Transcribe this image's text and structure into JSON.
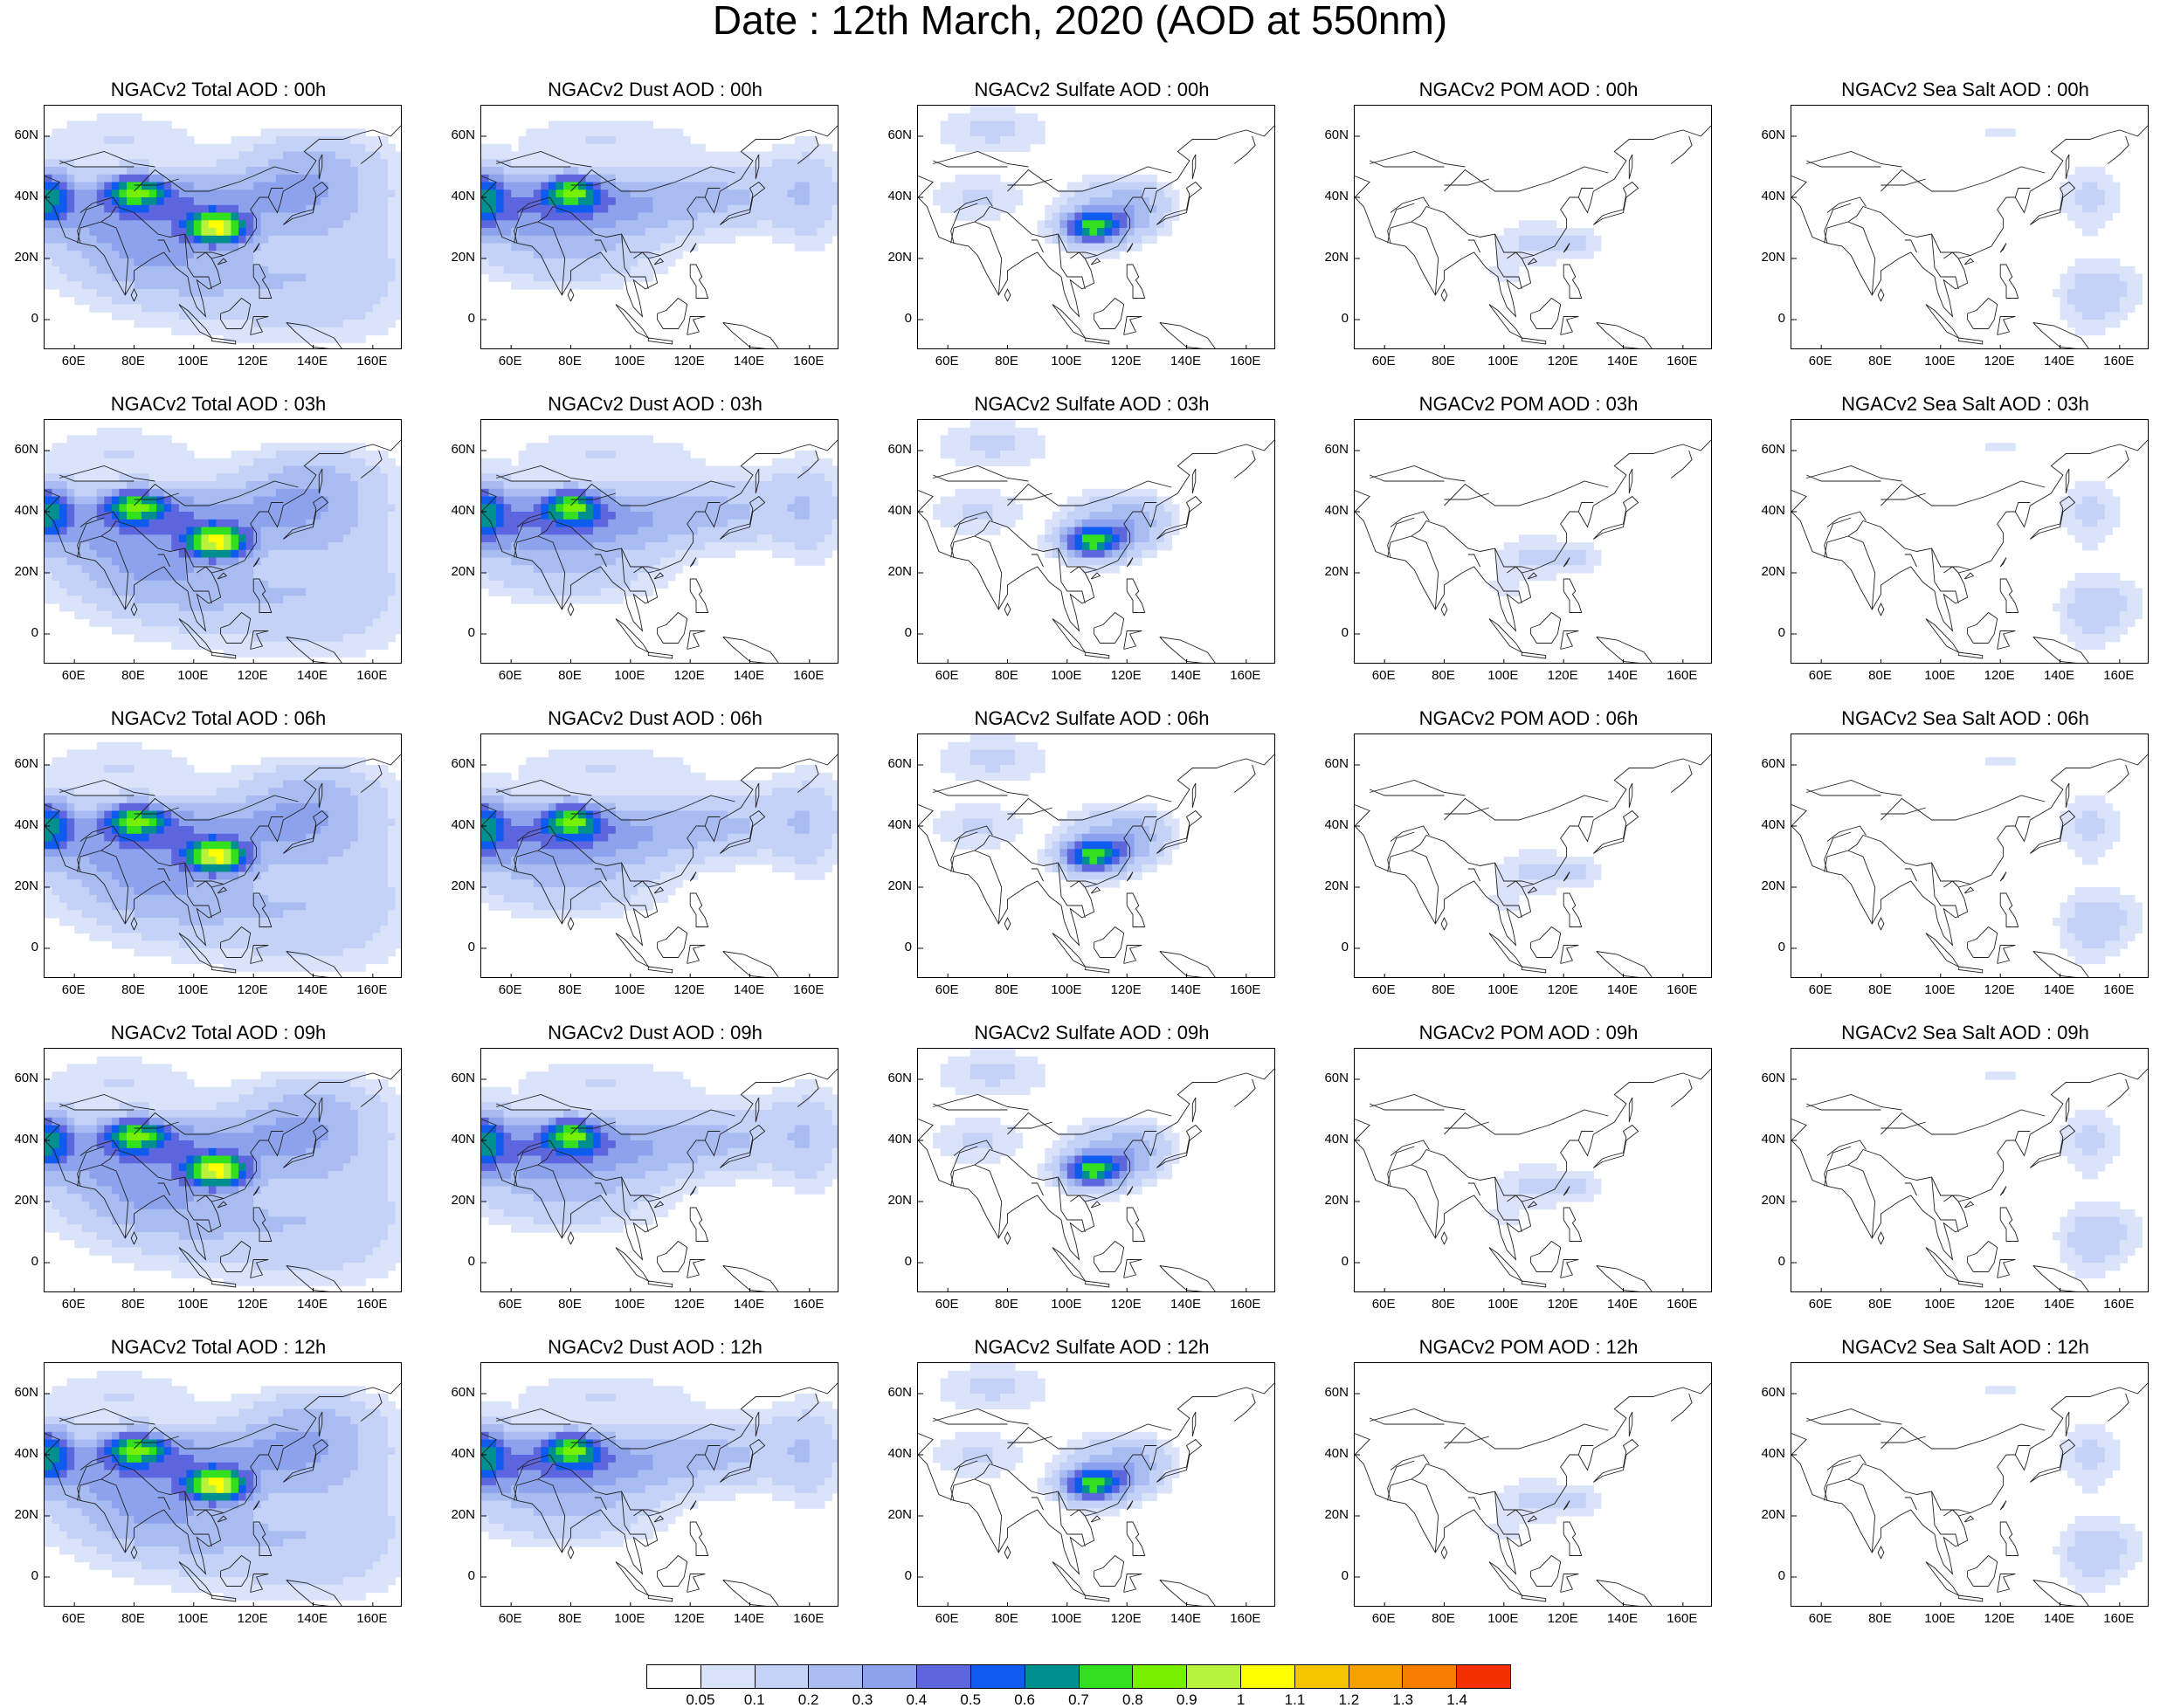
{
  "title": "Date : 12th March, 2020 (AOD at 550nm)",
  "lat_ticks": [
    "60N",
    "40N",
    "20N",
    "0"
  ],
  "lon_ticks": [
    "60E",
    "80E",
    "100E",
    "120E",
    "140E",
    "160E"
  ],
  "colorbar": {
    "colors": [
      "#ffffff",
      "#dbe3fb",
      "#c4d2f8",
      "#a9bcf2",
      "#8da2ec",
      "#5d66de",
      "#0f5bf0",
      "#008f8f",
      "#32e020",
      "#77f000",
      "#b7f23c",
      "#ffff00",
      "#f7c400",
      "#f7a200",
      "#f57e00",
      "#f53000"
    ],
    "labels": [
      "0.05",
      "0.1",
      "0.2",
      "0.3",
      "0.4",
      "0.5",
      "0.6",
      "0.7",
      "0.8",
      "0.9",
      "1",
      "1.1",
      "1.2",
      "1.3",
      "1.4"
    ]
  },
  "panels": [
    {
      "title": "NGACv2 Total AOD : 00h",
      "species": "total"
    },
    {
      "title": "NGACv2 Dust AOD : 00h",
      "species": "dust"
    },
    {
      "title": "NGACv2 Sulfate AOD : 00h",
      "species": "sulfate"
    },
    {
      "title": "NGACv2 POM AOD : 00h",
      "species": "pom"
    },
    {
      "title": "NGACv2 Sea Salt AOD : 00h",
      "species": "seasalt"
    },
    {
      "title": "NGACv2 Total AOD : 03h",
      "species": "total"
    },
    {
      "title": "NGACv2 Dust AOD : 03h",
      "species": "dust"
    },
    {
      "title": "NGACv2 Sulfate AOD : 03h",
      "species": "sulfate"
    },
    {
      "title": "NGACv2 POM AOD : 03h",
      "species": "pom"
    },
    {
      "title": "NGACv2 Sea Salt AOD : 03h",
      "species": "seasalt"
    },
    {
      "title": "NGACv2 Total AOD : 06h",
      "species": "total"
    },
    {
      "title": "NGACv2 Dust AOD : 06h",
      "species": "dust"
    },
    {
      "title": "NGACv2 Sulfate AOD : 06h",
      "species": "sulfate"
    },
    {
      "title": "NGACv2 POM AOD : 06h",
      "species": "pom"
    },
    {
      "title": "NGACv2 Sea Salt AOD : 06h",
      "species": "seasalt"
    },
    {
      "title": "NGACv2 Total AOD : 09h",
      "species": "total"
    },
    {
      "title": "NGACv2 Dust AOD : 09h",
      "species": "dust"
    },
    {
      "title": "NGACv2 Sulfate AOD : 09h",
      "species": "sulfate"
    },
    {
      "title": "NGACv2 POM AOD : 09h",
      "species": "pom"
    },
    {
      "title": "NGACv2 Sea Salt  AOD : 09h",
      "species": "seasalt"
    },
    {
      "title": "NGACv2 Total AOD  : 12h",
      "species": "total"
    },
    {
      "title": "NGACv2 Dust AOD : 12h",
      "species": "dust"
    },
    {
      "title": "NGACv2 Sulfate AOD : 12h",
      "species": "sulfate"
    },
    {
      "title": "NGACv2 POM  AOD : 12h",
      "species": "pom"
    },
    {
      "title": "NGACv2 Sea Salt  AOD : 12h",
      "species": "seasalt"
    }
  ]
}
